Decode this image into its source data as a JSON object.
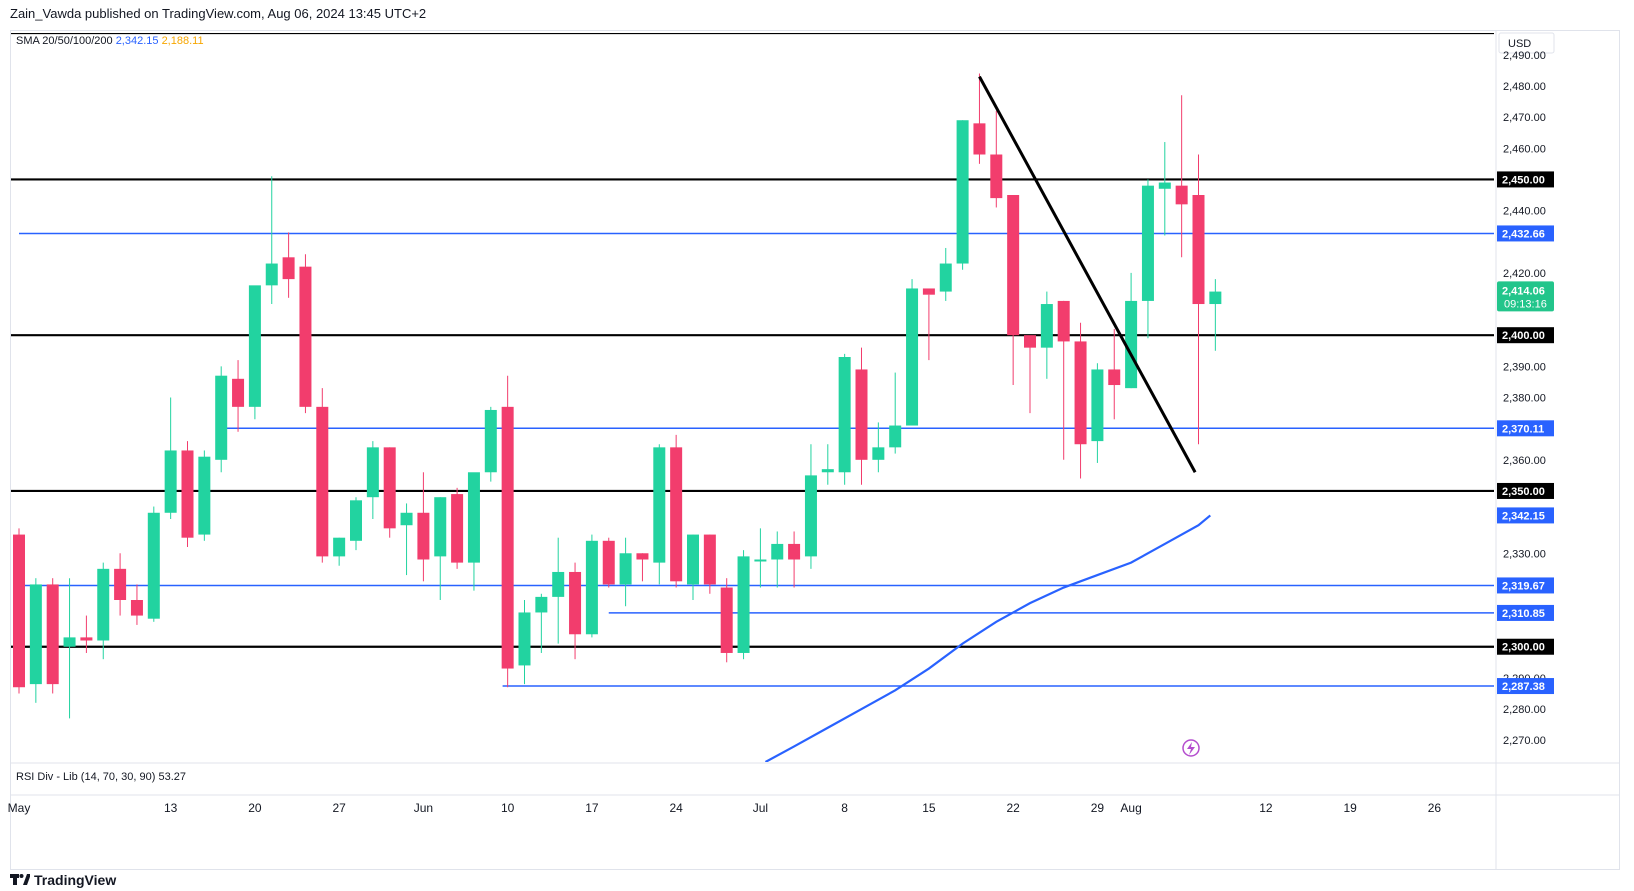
{
  "header": {
    "publisher": "Zain_Vawda published on TradingView.com, Aug 06, 2024 13:45 UTC+2"
  },
  "footer": {
    "brand": "TradingView"
  },
  "colors": {
    "up": "#22d3a0",
    "down": "#f23d6d",
    "sma": "#2962ff",
    "black_line": "#000000",
    "blue_line": "#2962ff"
  },
  "chart_data": {
    "type": "candlestick",
    "currency": "USD",
    "indicator_legend": {
      "name": "SMA 20/50/100/200",
      "value1": "2,342.15",
      "value2": "2,188.11"
    },
    "rsi_legend": {
      "name": "RSI Div - Lib",
      "params": "(14, 70, 30, 90)",
      "value": "53.27"
    },
    "ylim": [
      2263,
      2497
    ],
    "y_ticks": [
      2490,
      2480,
      2470,
      2460,
      2440,
      2420,
      2390,
      2380,
      2360,
      2330,
      2290,
      2280,
      2270
    ],
    "y_tick_labels": [
      "2,490.00",
      "2,480.00",
      "2,470.00",
      "2,460.00",
      "2,440.00",
      "2,420.00",
      "2,390.00",
      "2,380.00",
      "2,360.00",
      "2,330.00",
      "2,290.00",
      "2,280.00",
      "2,270.00"
    ],
    "x_labels": [
      {
        "i": 0,
        "t": "May"
      },
      {
        "i": 9,
        "t": "13"
      },
      {
        "i": 14,
        "t": "20"
      },
      {
        "i": 19,
        "t": "27"
      },
      {
        "i": 24,
        "t": "Jun"
      },
      {
        "i": 29,
        "t": "10"
      },
      {
        "i": 34,
        "t": "17"
      },
      {
        "i": 39,
        "t": "24"
      },
      {
        "i": 44,
        "t": "Jul"
      },
      {
        "i": 49,
        "t": "8"
      },
      {
        "i": 54,
        "t": "15"
      },
      {
        "i": 59,
        "t": "22"
      },
      {
        "i": 64,
        "t": "29"
      },
      {
        "i": 66,
        "t": "Aug"
      },
      {
        "i": 74,
        "t": "12"
      },
      {
        "i": 79,
        "t": "19"
      },
      {
        "i": 84,
        "t": "26"
      }
    ],
    "candles": [
      [
        2336,
        2338,
        2285,
        2287
      ],
      [
        2288,
        2322,
        2282,
        2320
      ],
      [
        2320,
        2322,
        2285,
        2288
      ],
      [
        2300,
        2322,
        2277,
        2303
      ],
      [
        2303,
        2310,
        2298,
        2302
      ],
      [
        2302,
        2327,
        2296,
        2325
      ],
      [
        2325,
        2330,
        2310,
        2315
      ],
      [
        2315,
        2320,
        2307,
        2310
      ],
      [
        2309,
        2345,
        2308,
        2343
      ],
      [
        2343,
        2380,
        2341,
        2363
      ],
      [
        2363,
        2366,
        2332,
        2335
      ],
      [
        2336,
        2363,
        2334,
        2361
      ],
      [
        2360,
        2390,
        2356,
        2387
      ],
      [
        2386,
        2392,
        2369,
        2377
      ],
      [
        2377,
        2415,
        2373,
        2416
      ],
      [
        2416,
        2451,
        2410,
        2423
      ],
      [
        2425,
        2433,
        2412,
        2418
      ],
      [
        2422,
        2426,
        2375,
        2377
      ],
      [
        2377,
        2383,
        2327,
        2329
      ],
      [
        2329,
        2335,
        2326,
        2335
      ],
      [
        2334,
        2348,
        2331,
        2347
      ],
      [
        2348,
        2366,
        2341,
        2364
      ],
      [
        2364,
        2364,
        2335,
        2338
      ],
      [
        2339,
        2346,
        2323,
        2343
      ],
      [
        2343,
        2356,
        2321,
        2328
      ],
      [
        2329,
        2348,
        2315,
        2348
      ],
      [
        2349,
        2351,
        2325,
        2327
      ],
      [
        2327,
        2355,
        2318,
        2356
      ],
      [
        2356,
        2377,
        2353,
        2376
      ],
      [
        2377,
        2387,
        2287,
        2293
      ],
      [
        2294,
        2315,
        2288,
        2311
      ],
      [
        2311,
        2317,
        2298,
        2316
      ],
      [
        2316,
        2335,
        2301,
        2324
      ],
      [
        2324,
        2327,
        2296,
        2304
      ],
      [
        2304,
        2336,
        2303,
        2334
      ],
      [
        2334,
        2335,
        2319,
        2320
      ],
      [
        2320,
        2335,
        2313,
        2330
      ],
      [
        2330,
        2330,
        2321,
        2328
      ],
      [
        2327,
        2365,
        2320,
        2364
      ],
      [
        2364,
        2368,
        2319,
        2321
      ],
      [
        2320,
        2336,
        2315,
        2336
      ],
      [
        2336,
        2336,
        2317,
        2320
      ],
      [
        2319,
        2322,
        2295,
        2298
      ],
      [
        2298,
        2331,
        2296,
        2329
      ],
      [
        2328,
        2338,
        2319,
        2328
      ],
      [
        2328,
        2337,
        2319,
        2333
      ],
      [
        2333,
        2337,
        2319,
        2328
      ],
      [
        2329,
        2365,
        2325,
        2355
      ],
      [
        2356,
        2365,
        2352,
        2357
      ],
      [
        2356,
        2394,
        2352,
        2393
      ],
      [
        2389,
        2396,
        2352,
        2360
      ],
      [
        2360,
        2372,
        2356,
        2364
      ],
      [
        2364,
        2388,
        2362,
        2371
      ],
      [
        2371,
        2418,
        2371,
        2415
      ],
      [
        2415,
        2413,
        2392,
        2413
      ],
      [
        2414,
        2428,
        2411,
        2423
      ],
      [
        2423,
        2469,
        2421,
        2469
      ],
      [
        2468,
        2484,
        2455,
        2458
      ],
      [
        2458,
        2472,
        2441,
        2444
      ],
      [
        2445,
        2445,
        2384,
        2400
      ],
      [
        2400,
        2398,
        2375,
        2396
      ],
      [
        2396,
        2414,
        2386,
        2410
      ],
      [
        2411,
        2411,
        2360,
        2398
      ],
      [
        2398,
        2404,
        2354,
        2365
      ],
      [
        2366,
        2391,
        2359,
        2389
      ],
      [
        2389,
        2402,
        2373,
        2384
      ],
      [
        2383,
        2420,
        2383,
        2411
      ],
      [
        2411,
        2450,
        2399,
        2448
      ],
      [
        2447,
        2462,
        2432,
        2449
      ],
      [
        2448,
        2477,
        2425,
        2442
      ],
      [
        2445,
        2458,
        2365,
        2410
      ],
      [
        2410,
        2418,
        2395,
        2414
      ]
    ],
    "sma_line": [
      [
        44.3,
        2263
      ],
      [
        46,
        2268
      ],
      [
        48,
        2274
      ],
      [
        50,
        2280
      ],
      [
        52,
        2286
      ],
      [
        54,
        2293
      ],
      [
        56,
        2301
      ],
      [
        58,
        2308
      ],
      [
        60,
        2314
      ],
      [
        62,
        2319
      ],
      [
        64,
        2323
      ],
      [
        66,
        2327
      ],
      [
        68,
        2333
      ],
      [
        70,
        2339
      ],
      [
        70.7,
        2342.15
      ]
    ],
    "black_levels": [
      {
        "value": 2497,
        "label": ""
      },
      {
        "value": 2450,
        "label": "2,450.00"
      },
      {
        "value": 2400,
        "label": "2,400.00"
      },
      {
        "value": 2350,
        "label": "2,350.00"
      },
      {
        "value": 2300,
        "label": "2,300.00"
      }
    ],
    "blue_levels": [
      {
        "value": 2432.66,
        "label": "2,432.66",
        "start": 0
      },
      {
        "value": 2370.11,
        "label": "2,370.11",
        "start": 12
      },
      {
        "value": 2319.67,
        "label": "2,319.67",
        "start": 0
      },
      {
        "value": 2310.85,
        "label": "2,310.85",
        "start": 35
      },
      {
        "value": 2287.38,
        "label": "2,287.38",
        "start": 28.7
      }
    ],
    "sma_label": "2,342.15",
    "trendline": {
      "from": [
        57,
        2483
      ],
      "to": [
        69.8,
        2356
      ]
    },
    "current_price": {
      "price": "2,414.06",
      "countdown": "09:13:16",
      "value": 2414.06
    }
  }
}
